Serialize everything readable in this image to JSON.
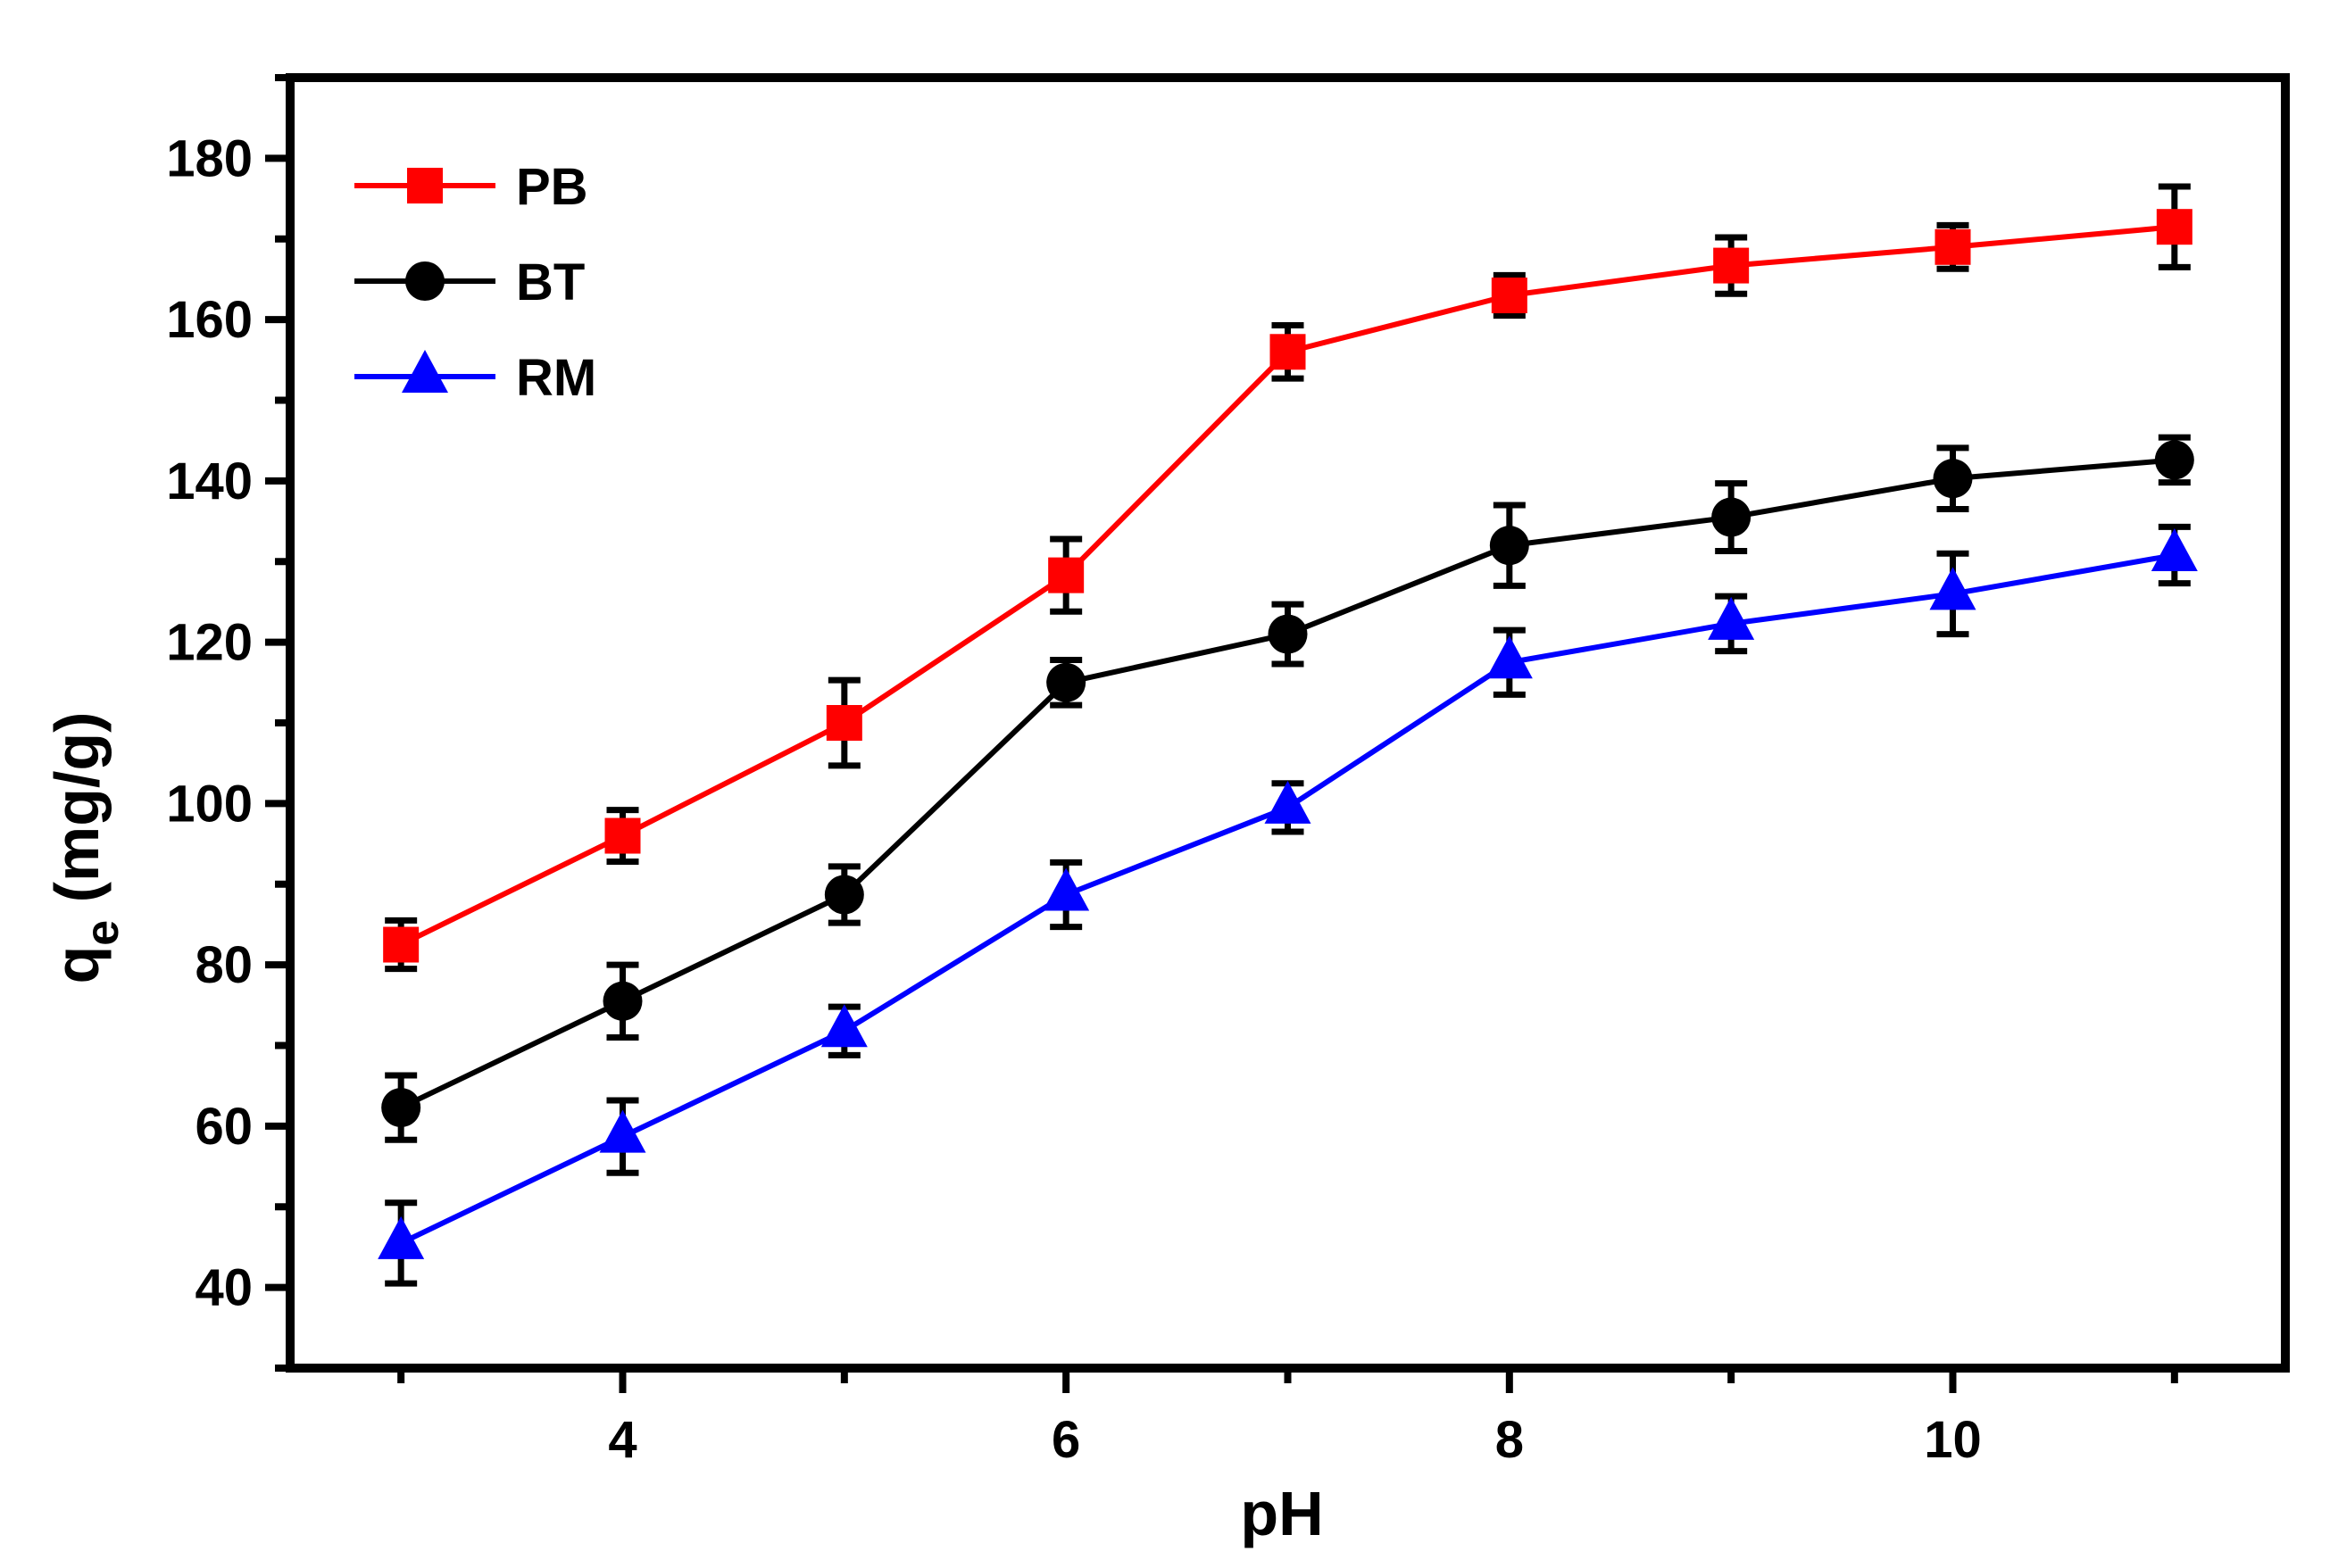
{
  "chart_data": {
    "type": "line",
    "title": "",
    "xlabel": "pH",
    "ylabel": "q",
    "ylabel_subscript": "e",
    "ylabel_unit": "(mg/g)",
    "xlim": [
      2.5,
      11.5
    ],
    "ylim": [
      30,
      190
    ],
    "x_ticks_major": [
      4,
      6,
      8,
      10
    ],
    "x_ticks_minor": [
      3,
      5,
      7,
      9,
      11
    ],
    "x_tick_labels": [
      "4",
      "6",
      "8",
      "10"
    ],
    "y_ticks_major": [
      40,
      60,
      80,
      100,
      120,
      140,
      160,
      180
    ],
    "y_tick_labels": [
      "40",
      "60",
      "80",
      "100",
      "120",
      "140",
      "160",
      "180"
    ],
    "y_ticks_minor": [
      30,
      50,
      70,
      90,
      110,
      130,
      150,
      170,
      190
    ],
    "grid": false,
    "legend_position": "top-left",
    "x": [
      3,
      4,
      5,
      6,
      7,
      8,
      9,
      10,
      11
    ],
    "series": [
      {
        "name": "PB",
        "color": "#ff0000",
        "marker": "square",
        "values": [
          82.5,
          96,
          110,
          128.3,
          156,
          163,
          166.7,
          169,
          171.5
        ],
        "errors": [
          3,
          3.2,
          5.3,
          4.5,
          3.3,
          2.5,
          3.5,
          2.7,
          5
        ]
      },
      {
        "name": "BT",
        "color": "#000000",
        "marker": "circle",
        "values": [
          62.3,
          75.5,
          88.7,
          115,
          121,
          132,
          135.5,
          140.3,
          142.6
        ],
        "errors": [
          4,
          4.5,
          3.5,
          2.8,
          3.7,
          5,
          4.2,
          3.8,
          2.8
        ]
      },
      {
        "name": "RM",
        "color": "#0000ff",
        "marker": "triangle",
        "values": [
          45.5,
          58.7,
          71.8,
          88.7,
          99.5,
          117.5,
          122.3,
          126,
          130.8
        ],
        "errors": [
          5,
          4.5,
          3,
          4,
          3,
          4,
          3.4,
          5,
          3.5
        ]
      }
    ]
  }
}
